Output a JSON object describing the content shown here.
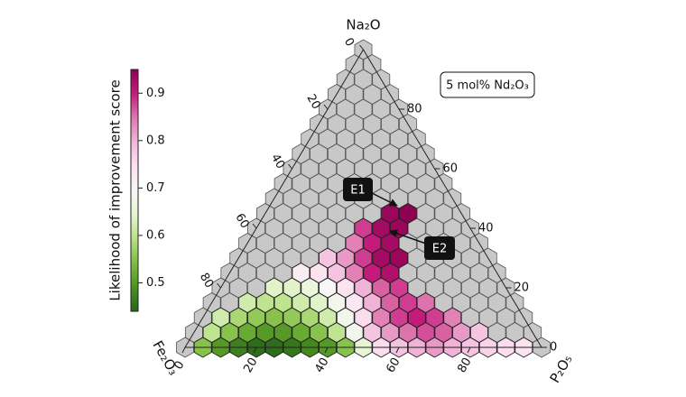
{
  "chart_data": {
    "type": "ternary-hexbin",
    "annotation": "5 mol% Nd₂O₃",
    "labels": [
      "E1",
      "E2"
    ],
    "axes": [
      {
        "name": "Na₂O",
        "lim": [
          0,
          100
        ],
        "ticks": [
          0,
          20,
          40,
          60,
          80
        ]
      },
      {
        "name": "P₂O₅",
        "lim": [
          0,
          100
        ],
        "ticks": [
          0,
          20,
          40,
          60,
          80
        ]
      },
      {
        "name": "Fe₂O₃",
        "lim": [
          0,
          100
        ],
        "ticks": [
          0,
          20,
          40,
          60,
          80
        ]
      }
    ],
    "colorbar": {
      "label": "Likelihood of improvement score",
      "lim": [
        0.44,
        0.95
      ],
      "ticks": [
        0.5,
        0.6,
        0.7,
        0.8,
        0.9
      ],
      "colormap": [
        "#276419",
        "#4d9221",
        "#7fbc41",
        "#b8e186",
        "#e6f5d0",
        "#f7f7f7",
        "#fde0ef",
        "#f1b6da",
        "#de77ae",
        "#c51b7d",
        "#8e0152"
      ]
    },
    "empty_color": "#c8c8c8",
    "rows": [
      [
        null,
        0.55,
        0.5,
        0.47,
        0.45,
        0.45,
        0.46,
        0.48,
        0.5,
        0.55,
        0.65,
        0.75,
        0.78,
        0.8,
        0.82,
        0.8,
        0.78,
        0.76,
        0.75,
        0.74,
        null
      ],
      [
        null,
        0.6,
        0.55,
        0.52,
        0.5,
        0.5,
        0.52,
        0.55,
        0.6,
        0.68,
        0.78,
        0.82,
        0.85,
        0.87,
        0.86,
        0.82,
        0.78,
        null,
        null,
        null
      ],
      [
        null,
        0.62,
        0.58,
        0.56,
        0.55,
        0.56,
        0.58,
        0.62,
        0.68,
        0.75,
        0.84,
        0.88,
        0.9,
        0.88,
        0.84,
        null,
        null,
        null,
        null
      ],
      [
        null,
        null,
        0.62,
        0.6,
        0.6,
        0.62,
        0.64,
        0.68,
        0.73,
        0.8,
        0.86,
        0.88,
        0.85,
        null,
        null,
        null,
        null,
        null
      ],
      [
        null,
        null,
        null,
        0.64,
        0.64,
        0.66,
        0.7,
        0.74,
        0.8,
        0.86,
        0.88,
        null,
        null,
        null,
        null,
        null,
        null
      ],
      [
        null,
        null,
        null,
        null,
        0.72,
        0.74,
        0.78,
        0.84,
        0.9,
        0.92,
        null,
        null,
        null,
        null,
        null,
        null
      ],
      [
        null,
        null,
        null,
        null,
        null,
        0.78,
        0.82,
        0.88,
        0.93,
        0.94,
        null,
        null,
        null,
        null,
        null
      ],
      [
        null,
        null,
        null,
        null,
        null,
        null,
        0.84,
        0.9,
        0.93,
        null,
        null,
        null,
        null,
        null
      ],
      [
        null,
        null,
        null,
        null,
        null,
        null,
        0.88,
        0.93,
        0.94,
        null,
        null,
        null,
        null
      ],
      [
        null,
        null,
        null,
        null,
        null,
        null,
        null,
        0.94,
        0.95,
        null,
        null,
        null
      ],
      [
        null,
        null,
        null,
        null,
        null,
        null,
        null,
        null,
        null,
        null,
        null
      ],
      [
        null,
        null,
        null,
        null,
        null,
        null,
        null,
        null,
        null,
        null
      ],
      [
        null,
        null,
        null,
        null,
        null,
        null,
        null,
        null,
        null
      ],
      [
        null,
        null,
        null,
        null,
        null,
        null,
        null,
        null
      ],
      [
        null,
        null,
        null,
        null,
        null,
        null,
        null
      ],
      [
        null,
        null,
        null,
        null,
        null,
        null
      ],
      [
        null,
        null,
        null,
        null,
        null
      ],
      [
        null,
        null,
        null,
        null
      ],
      [
        null,
        null,
        null
      ],
      [
        null,
        null
      ],
      [
        null
      ]
    ]
  }
}
